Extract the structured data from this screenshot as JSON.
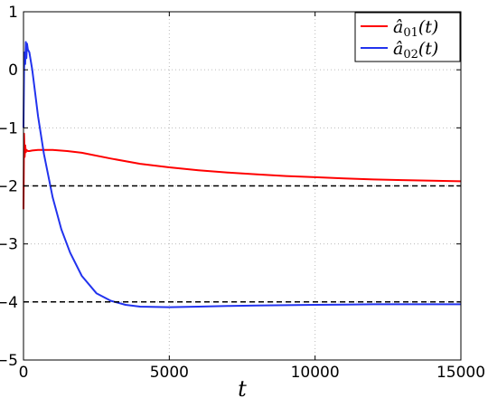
{
  "chart_data": {
    "type": "line",
    "title": "",
    "xlabel": "t",
    "ylabel": "",
    "xlim": [
      0,
      15000
    ],
    "ylim": [
      -5,
      1
    ],
    "x_ticks": [
      0,
      5000,
      10000,
      15000
    ],
    "x_tick_labels": [
      "0",
      "5000",
      "10000",
      "15000"
    ],
    "y_ticks": [
      1,
      0,
      -1,
      -2,
      -3,
      -4,
      -5
    ],
    "y_tick_labels": [
      "1",
      "0",
      "−1",
      "−2",
      "−3",
      "−4",
      "−5"
    ],
    "grid": true,
    "legend_position": "top-right",
    "series": [
      {
        "name": "â01(t)",
        "legend_base": "â",
        "legend_sub": "01",
        "legend_suffix": "(t)",
        "color": "#ff0000",
        "x": [
          0,
          20,
          40,
          60,
          80,
          100,
          150,
          200,
          300,
          500,
          1000,
          1500,
          2000,
          3000,
          4000,
          5000,
          6000,
          7000,
          8000,
          9000,
          10000,
          11000,
          12000,
          13000,
          14000,
          15000
        ],
        "y": [
          -2.4,
          -1.1,
          -1.5,
          -1.3,
          -1.42,
          -1.38,
          -1.4,
          -1.4,
          -1.39,
          -1.38,
          -1.38,
          -1.4,
          -1.43,
          -1.53,
          -1.62,
          -1.68,
          -1.73,
          -1.77,
          -1.8,
          -1.83,
          -1.85,
          -1.87,
          -1.89,
          -1.9,
          -1.91,
          -1.92
        ]
      },
      {
        "name": "â02(t)",
        "legend_base": "â",
        "legend_sub": "02",
        "legend_suffix": "(t)",
        "color": "#2233ee",
        "x": [
          0,
          20,
          40,
          60,
          80,
          100,
          120,
          150,
          200,
          300,
          400,
          500,
          700,
          1000,
          1300,
          1600,
          2000,
          2500,
          3000,
          3500,
          4000,
          5000,
          6000,
          7000,
          8000,
          10000,
          12000,
          14000,
          15000
        ],
        "y": [
          -1.0,
          0.0,
          0.3,
          0.1,
          0.48,
          0.2,
          0.45,
          0.35,
          0.3,
          0.0,
          -0.4,
          -0.8,
          -1.45,
          -2.2,
          -2.75,
          -3.15,
          -3.55,
          -3.85,
          -3.98,
          -4.05,
          -4.08,
          -4.09,
          -4.08,
          -4.07,
          -4.06,
          -4.05,
          -4.04,
          -4.04,
          -4.04
        ]
      },
      {
        "name": "",
        "color": "#000000",
        "dashed": true,
        "x": [
          0,
          15000
        ],
        "y": [
          -2,
          -2
        ]
      },
      {
        "name": "",
        "color": "#000000",
        "dashed": true,
        "x": [
          0,
          15000
        ],
        "y": [
          -4,
          -4
        ]
      }
    ]
  }
}
